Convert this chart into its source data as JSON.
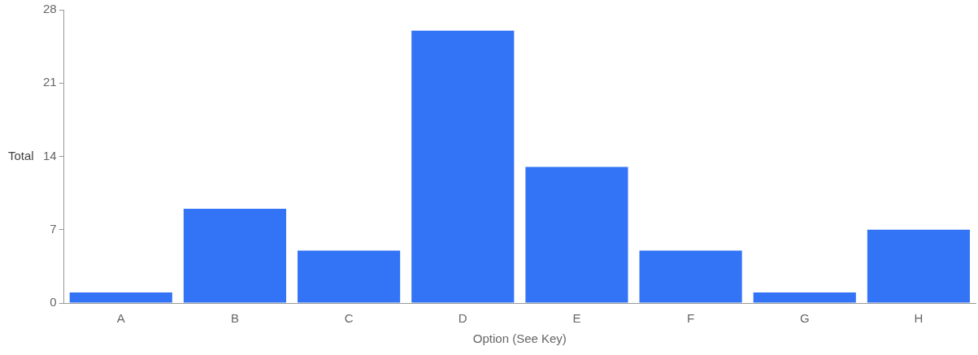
{
  "chart_data": {
    "type": "bar",
    "xlabel": "Option (See Key)",
    "ylabel": "Total",
    "categories": [
      "A",
      "B",
      "C",
      "D",
      "E",
      "F",
      "G",
      "H"
    ],
    "values": [
      1,
      9,
      5,
      26,
      13,
      5,
      1,
      7
    ],
    "color": "#3373f5",
    "ylim": [
      0,
      28
    ],
    "yticks": [
      0,
      7,
      14,
      21,
      28
    ],
    "grid": false
  }
}
